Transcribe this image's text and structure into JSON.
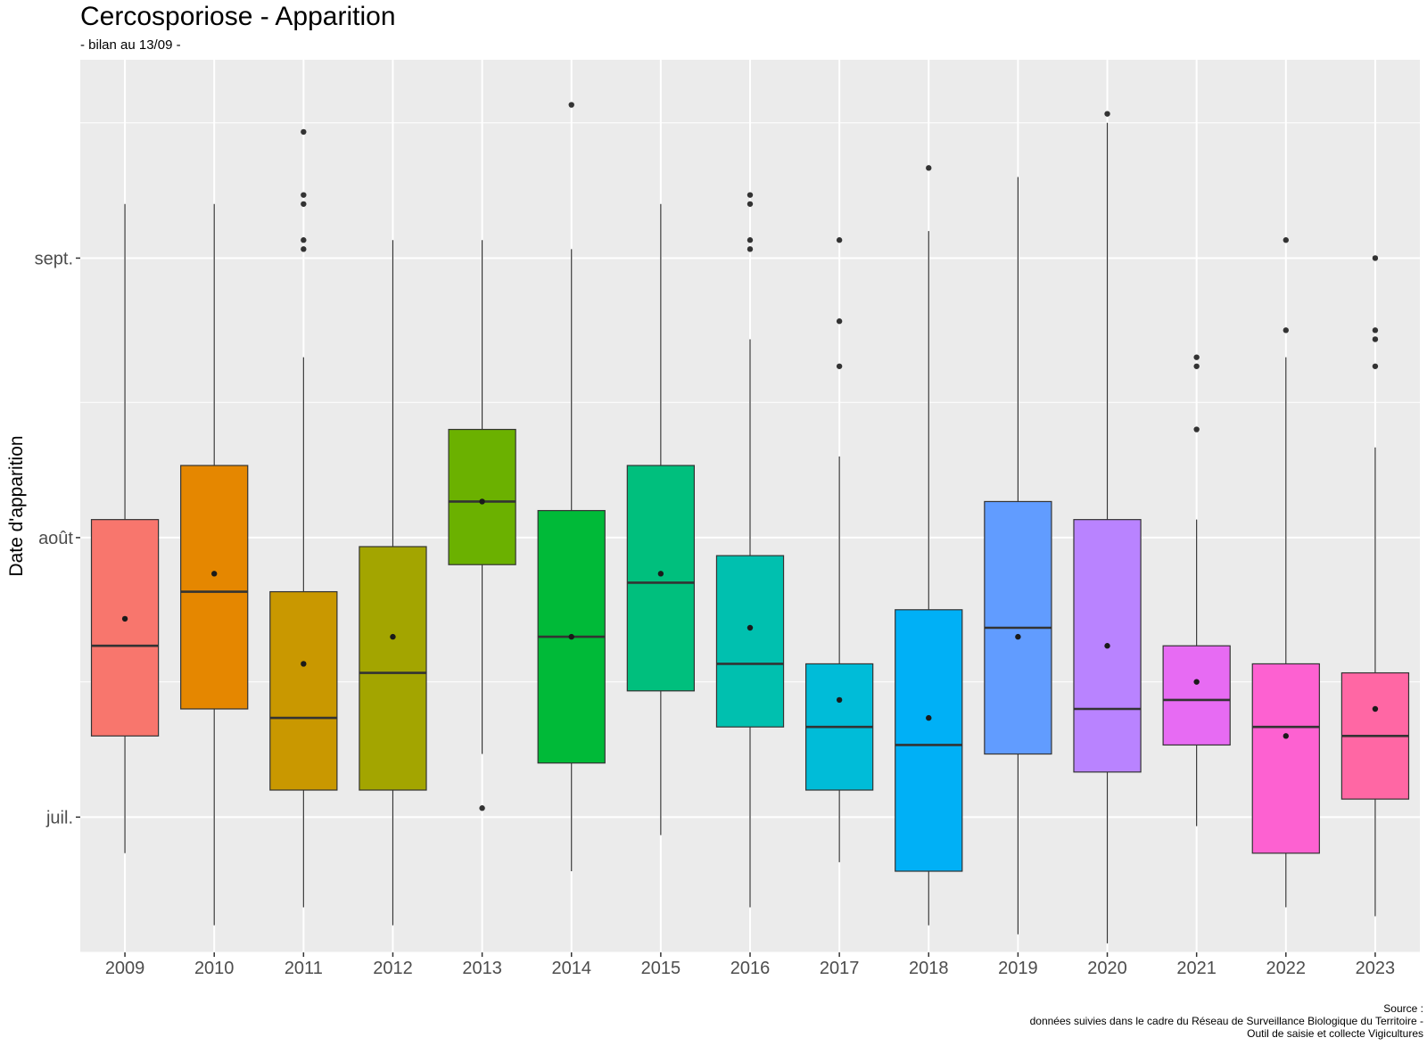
{
  "chart_data": {
    "type": "boxplot",
    "title": "Cercosporiose - Apparition",
    "subtitle": "- bilan au 13/09 -",
    "xlabel": "",
    "ylabel": "Date d'apparition",
    "y_axis_kind": "date",
    "ylim": [
      "06-16",
      "09-23"
    ],
    "y_ticks": [
      {
        "date": "07-01",
        "label": "juil."
      },
      {
        "date": "08-01",
        "label": "août"
      },
      {
        "date": "09-01",
        "label": "sept."
      }
    ],
    "y_minor_gridlines": [
      "06-16",
      "07-16",
      "08-16",
      "09-16"
    ],
    "grid": true,
    "legend": "none",
    "categories": [
      "2009",
      "2010",
      "2011",
      "2012",
      "2013",
      "2014",
      "2015",
      "2016",
      "2017",
      "2018",
      "2019",
      "2020",
      "2021",
      "2022",
      "2023"
    ],
    "boxes": [
      {
        "year": "2009",
        "color": "#F8766D",
        "whisker_low": "06-27",
        "q1": "07-10",
        "median": "07-20",
        "q3": "08-03",
        "whisker_high": "09-07",
        "mean": "07-23",
        "outliers": []
      },
      {
        "year": "2010",
        "color": "#E58700",
        "whisker_low": "06-19",
        "q1": "07-13",
        "median": "07-26",
        "q3": "08-09",
        "whisker_high": "09-07",
        "mean": "07-28",
        "outliers": []
      },
      {
        "year": "2011",
        "color": "#C99800",
        "whisker_low": "06-21",
        "q1": "07-04",
        "median": "07-12",
        "q3": "07-26",
        "whisker_high": "08-21",
        "mean": "07-18",
        "outliers": [
          "09-15",
          "09-08",
          "09-07",
          "09-03",
          "09-02"
        ]
      },
      {
        "year": "2012",
        "color": "#A3A500",
        "whisker_low": "06-19",
        "q1": "07-04",
        "median": "07-17",
        "q3": "07-31",
        "whisker_high": "09-03",
        "mean": "07-21",
        "outliers": []
      },
      {
        "year": "2013",
        "color": "#6BB100",
        "whisker_low": "07-08",
        "q1": "07-29",
        "median": "08-05",
        "q3": "08-13",
        "whisker_high": "09-03",
        "mean": "08-05",
        "outliers": [
          "07-02"
        ]
      },
      {
        "year": "2014",
        "color": "#00BA38",
        "whisker_low": "06-25",
        "q1": "07-07",
        "median": "07-21",
        "q3": "08-04",
        "whisker_high": "09-02",
        "mean": "07-21",
        "outliers": [
          "09-18"
        ]
      },
      {
        "year": "2015",
        "color": "#00BF7D",
        "whisker_low": "06-29",
        "q1": "07-15",
        "median": "07-27",
        "q3": "08-09",
        "whisker_high": "09-07",
        "mean": "07-28",
        "outliers": []
      },
      {
        "year": "2016",
        "color": "#00C0AF",
        "whisker_low": "06-21",
        "q1": "07-11",
        "median": "07-18",
        "q3": "07-30",
        "whisker_high": "08-23",
        "mean": "07-22",
        "outliers": [
          "09-08",
          "09-07",
          "09-03",
          "09-02"
        ]
      },
      {
        "year": "2017",
        "color": "#00BCD8",
        "whisker_low": "06-26",
        "q1": "07-04",
        "median": "07-11",
        "q3": "07-18",
        "whisker_high": "08-10",
        "mean": "07-14",
        "outliers": [
          "09-03",
          "08-25",
          "08-20"
        ]
      },
      {
        "year": "2018",
        "color": "#00B0F6",
        "whisker_low": "06-19",
        "q1": "06-25",
        "median": "07-09",
        "q3": "07-24",
        "whisker_high": "09-04",
        "mean": "07-12",
        "outliers": [
          "09-11"
        ]
      },
      {
        "year": "2019",
        "color": "#619CFF",
        "whisker_low": "06-18",
        "q1": "07-08",
        "median": "07-22",
        "q3": "08-05",
        "whisker_high": "09-10",
        "mean": "07-21",
        "outliers": []
      },
      {
        "year": "2020",
        "color": "#B983FF",
        "whisker_low": "06-17",
        "q1": "07-06",
        "median": "07-13",
        "q3": "08-03",
        "whisker_high": "09-16",
        "mean": "07-20",
        "outliers": [
          "09-17"
        ]
      },
      {
        "year": "2021",
        "color": "#E76BF3",
        "whisker_low": "06-30",
        "q1": "07-09",
        "median": "07-14",
        "q3": "07-20",
        "whisker_high": "08-03",
        "mean": "07-16",
        "outliers": [
          "08-21",
          "08-20",
          "08-13"
        ]
      },
      {
        "year": "2022",
        "color": "#FD61D1",
        "whisker_low": "06-21",
        "q1": "06-27",
        "median": "07-11",
        "q3": "07-18",
        "whisker_high": "08-21",
        "mean": "07-10",
        "outliers": [
          "09-03",
          "08-24"
        ]
      },
      {
        "year": "2023",
        "color": "#FF67A4",
        "whisker_low": "06-20",
        "q1": "07-03",
        "median": "07-10",
        "q3": "07-17",
        "whisker_high": "08-11",
        "mean": "07-13",
        "outliers": [
          "09-01",
          "08-24",
          "08-23",
          "08-20"
        ]
      }
    ]
  },
  "caption": {
    "line1": "Source :",
    "line2": "données suivies dans le cadre du Réseau de Surveillance Biologique du Territoire -",
    "line3": "Outil de saisie et collecte Vigicultures"
  }
}
